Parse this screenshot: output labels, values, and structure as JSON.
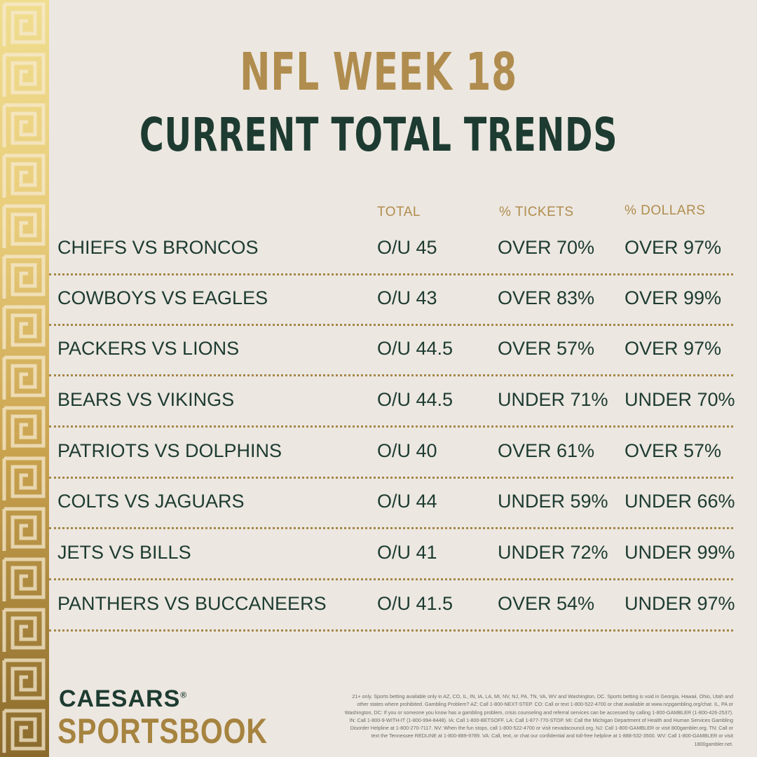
{
  "colors": {
    "background": "#ece7e1",
    "gold": "#b08d4e",
    "dark_green": "#1d3b31"
  },
  "header": {
    "title": "NFL WEEK 18",
    "subtitle": "CURRENT TOTAL TRENDS"
  },
  "table": {
    "columns": [
      "TOTAL",
      "% TICKETS",
      "% DOLLARS"
    ],
    "rows": [
      {
        "game": "CHIEFS VS BRONCOS",
        "total": "O/U 45",
        "tickets": "OVER 70%",
        "dollars": "OVER 97%"
      },
      {
        "game": "COWBOYS VS EAGLES",
        "total": "O/U 43",
        "tickets": "OVER 83%",
        "dollars": "OVER 99%"
      },
      {
        "game": "PACKERS VS LIONS",
        "total": "O/U 44.5",
        "tickets": "OVER 57%",
        "dollars": "OVER 97%"
      },
      {
        "game": "BEARS VS VIKINGS",
        "total": "O/U 44.5",
        "tickets": "UNDER 71%",
        "dollars": "UNDER 70%"
      },
      {
        "game": "PATRIOTS VS DOLPHINS",
        "total": "O/U 40",
        "tickets": "OVER 61%",
        "dollars": "OVER 57%"
      },
      {
        "game": "COLTS VS JAGUARS",
        "total": "O/U 44",
        "tickets": "UNDER 59%",
        "dollars": "UNDER 66%"
      },
      {
        "game": "JETS VS BILLS",
        "total": "O/U 41",
        "tickets": "UNDER 72%",
        "dollars": "UNDER 99%"
      },
      {
        "game": "PANTHERS VS BUCCANEERS",
        "total": "O/U 41.5",
        "tickets": "OVER 54%",
        "dollars": "UNDER 97%"
      }
    ]
  },
  "brand": {
    "line1": "CAESARS",
    "registered": "®",
    "line2": "SPORTSBOOK"
  },
  "disclaimer": "21+ only. Sports betting available only in AZ, CO, IL, IN, IA, LA, MI, NV, NJ, PA, TN, VA, WV and Washington, DC. Sports betting is void in Georgia, Hawaii, Ohio, Utah and other states where prohibited. Gambling Problem? AZ: Call 1-800-NEXT-STEP. CO: Call or text 1-800-522-4700 or chat available at www.ncpgambling.org/chat. IL, PA or Washington, DC: If you or someone you know has a gambling problem, crisis counseling and referral services can be accessed by calling 1-800-GAMBLER (1-800-426-2537). IN: Call 1-800-9-WITH-IT (1-800-994-8448). IA: Call 1-800-BETSOFF. LA: Call 1-877-770-STOP. MI: Call the Michigan Department of Health and Human Services Gambling Disorder Helpline at 1-800-270-7117. NV: When the fun stops, call 1-800-522-4700 or visit nevadacouncil.org. NJ: Call 1-800-GAMBLER or visit 800gambler.org. TN: Call or text the Tennessee REDLINE at 1-800-889-9789. VA: Call, text, or chat our confidential and toll-free helpline at 1-888-532-3500. WV: Call 1-800-GAMBLER or visit 1800gambler.net."
}
